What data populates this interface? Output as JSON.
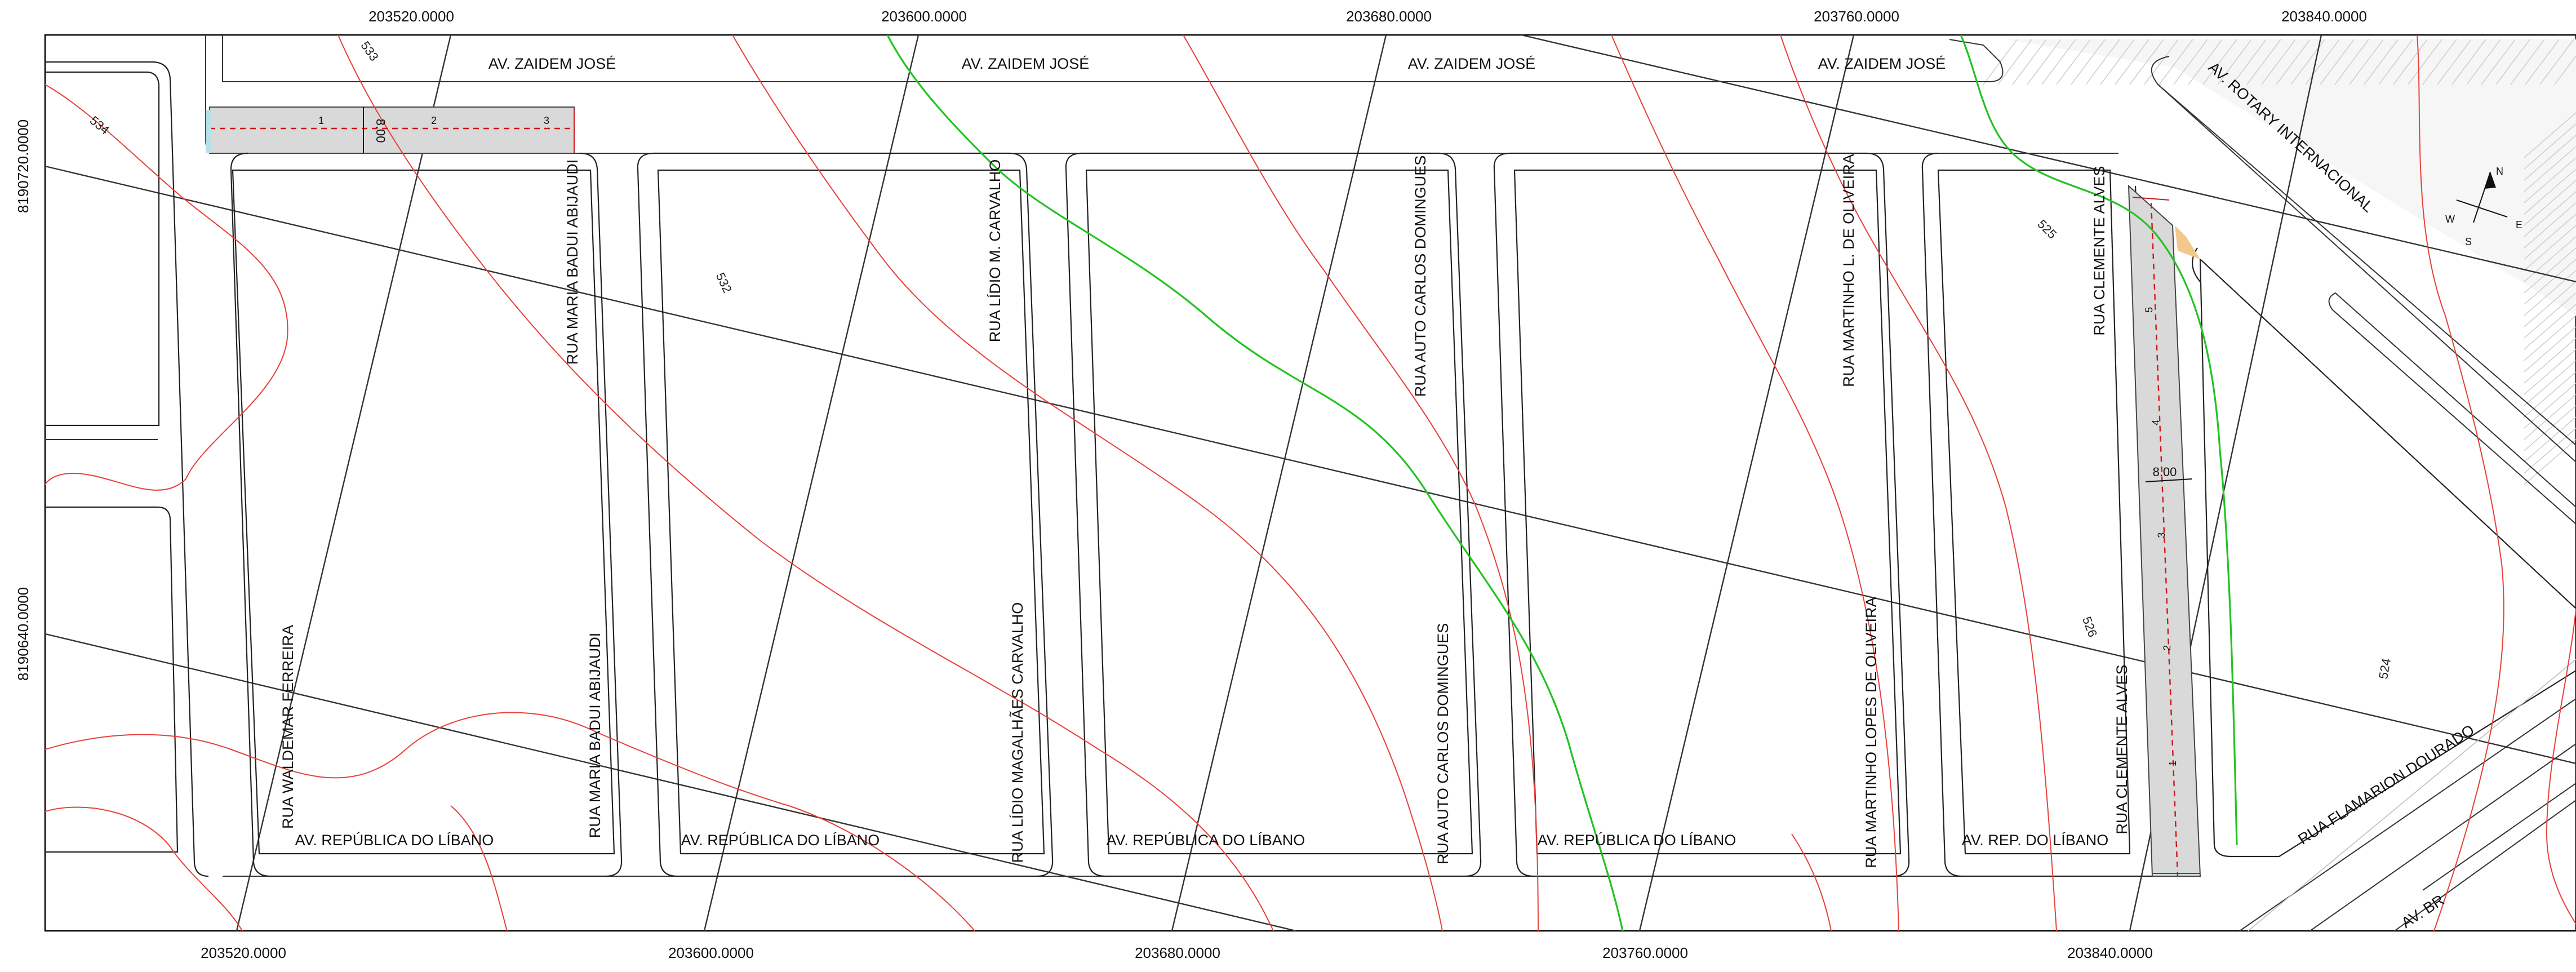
{
  "grid": {
    "x_labels_top": [
      "203520.0000",
      "203600.0000",
      "203680.0000",
      "203760.0000",
      "203840.0000"
    ],
    "x_labels_bottom": [
      "203520.0000",
      "203600.0000",
      "203680.0000",
      "203760.0000",
      "203840.0000"
    ],
    "y_labels": [
      "8190720.0000",
      "8190640.0000"
    ]
  },
  "streets": {
    "top": [
      "AV. ZAIDEM JOSÉ",
      "AV. ZAIDEM JOSÉ",
      "AV. ZAIDEM JOSÉ",
      "AV. ZAIDEM JOSÉ"
    ],
    "bottom": [
      "AV. REPÚBLICA DO LÍBANO",
      "AV. REPÚBLICA DO LÍBANO",
      "AV. REPÚBLICA DO LÍBANO",
      "AV. REPÚBLICA DO LÍBANO",
      "AV. REP. DO LÍBANO"
    ],
    "vertical_upper": [
      "RUA MARIA BADUI ABIJAUDI",
      "RUA LÍDIO M. CARVALHO",
      "RUA AUTO CARLOS DOMINGUES",
      "RUA MARTINHO L. DE OLIVEIRA",
      "RUA  CLEMENTE ALVES"
    ],
    "vertical_lower": [
      "RUA WALDEMAR FERREIRA",
      "RUA MARIA BADUI ABIJAUDI",
      "RUA LÍDIO MAGALHÃES CARVALHO",
      "RUA AUTO CARLOS DOMINGUES",
      "RUA MARTINHO LOPES DE OLIVEIRA",
      "RUA  CLEMENTE ALVES"
    ],
    "diagonal": [
      "AV. ROTARY INTERNACIONAL",
      "RUA FLAMARION DOURADO",
      "AV. BR"
    ]
  },
  "contours": [
    "533",
    "534",
    "532",
    "525",
    "526",
    "524"
  ],
  "dimensions": {
    "top_strip_width": "8.00",
    "right_strip_width": "8.00",
    "top_strip_stations": [
      "1",
      "2",
      "3"
    ],
    "right_strip_stations": [
      "5",
      "4",
      "3",
      "2",
      "1"
    ]
  },
  "north_arrow": {
    "n": "N",
    "s": "S",
    "e": "E",
    "w": "W"
  },
  "colors": {
    "contour": "#e8413a",
    "drainage": "#22c322",
    "strip_fill": "#d9d9d9",
    "axis": "#d01616"
  }
}
